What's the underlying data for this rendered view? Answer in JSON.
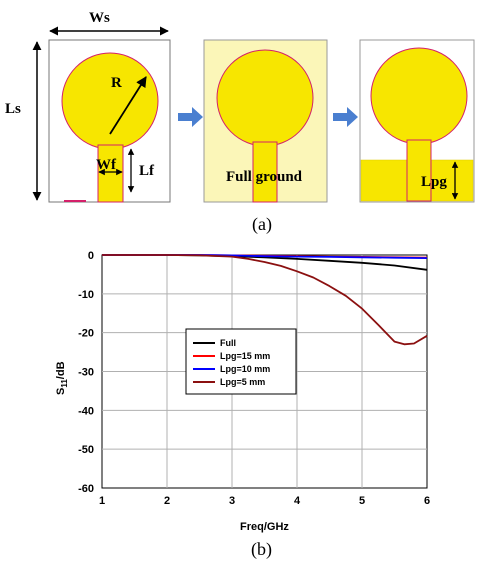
{
  "panel_a": {
    "labels": {
      "ws": "Ws",
      "ls": "Ls",
      "r": "R",
      "wf": "Wf",
      "lf": "Lf",
      "full_ground": "Full ground",
      "lpg": "Lpg"
    },
    "caption": "(a)",
    "colors": {
      "patch": "#f7e600",
      "patch_edge": "#d4206a",
      "ground": "#f7e600",
      "substrate_tint": "#fbf6b8",
      "arrow": "#4a7fd0"
    }
  },
  "panel_b": {
    "caption": "(b)",
    "chart_data": {
      "type": "line",
      "xlabel": "Freq/GHz",
      "ylabel_main": "S",
      "ylabel_sub": "11",
      "ylabel_tail": "/dB",
      "xlim": [
        1,
        6
      ],
      "ylim": [
        -60,
        0
      ],
      "xticks": [
        1,
        2,
        3,
        4,
        5,
        6
      ],
      "yticks": [
        0,
        -10,
        -20,
        -30,
        -40,
        -50,
        -60
      ],
      "grid": true,
      "legend_position": "center-left",
      "series": [
        {
          "name": "Full",
          "color": "#000000",
          "x": [
            1,
            1.5,
            2,
            2.5,
            3,
            3.5,
            4,
            4.5,
            5,
            5.5,
            6
          ],
          "y": [
            0,
            0,
            0,
            -0.1,
            -0.3,
            -0.6,
            -1.0,
            -1.5,
            -2.0,
            -2.7,
            -3.8
          ]
        },
        {
          "name": "Lpg=15 mm",
          "color": "#ff0000",
          "x": [
            1,
            1.5,
            2,
            2.5,
            3,
            3.5,
            4,
            4.5,
            5,
            5.5,
            6
          ],
          "y": [
            0,
            0,
            0,
            0,
            -0.1,
            -0.2,
            -0.3,
            -0.4,
            -0.5,
            -0.6,
            -0.7
          ]
        },
        {
          "name": "Lpg=10 mm",
          "color": "#0000ff",
          "x": [
            1,
            1.5,
            2,
            2.5,
            3,
            3.5,
            4,
            4.5,
            5,
            5.5,
            6
          ],
          "y": [
            0,
            0,
            0,
            0,
            -0.1,
            -0.3,
            -0.4,
            -0.5,
            -0.6,
            -0.7,
            -0.8
          ]
        },
        {
          "name": "Lpg=5 mm",
          "color": "#8b1010",
          "x": [
            1,
            1.5,
            2,
            2.5,
            3,
            3.25,
            3.5,
            3.75,
            4,
            4.25,
            4.5,
            4.75,
            5,
            5.25,
            5.5,
            5.65,
            5.8,
            6
          ],
          "y": [
            0,
            0,
            0,
            -0.1,
            -0.4,
            -1.0,
            -1.8,
            -2.8,
            -4.2,
            -5.8,
            -8.0,
            -10.5,
            -13.8,
            -18.0,
            -22.3,
            -23.0,
            -22.8,
            -20.8
          ]
        }
      ]
    }
  }
}
